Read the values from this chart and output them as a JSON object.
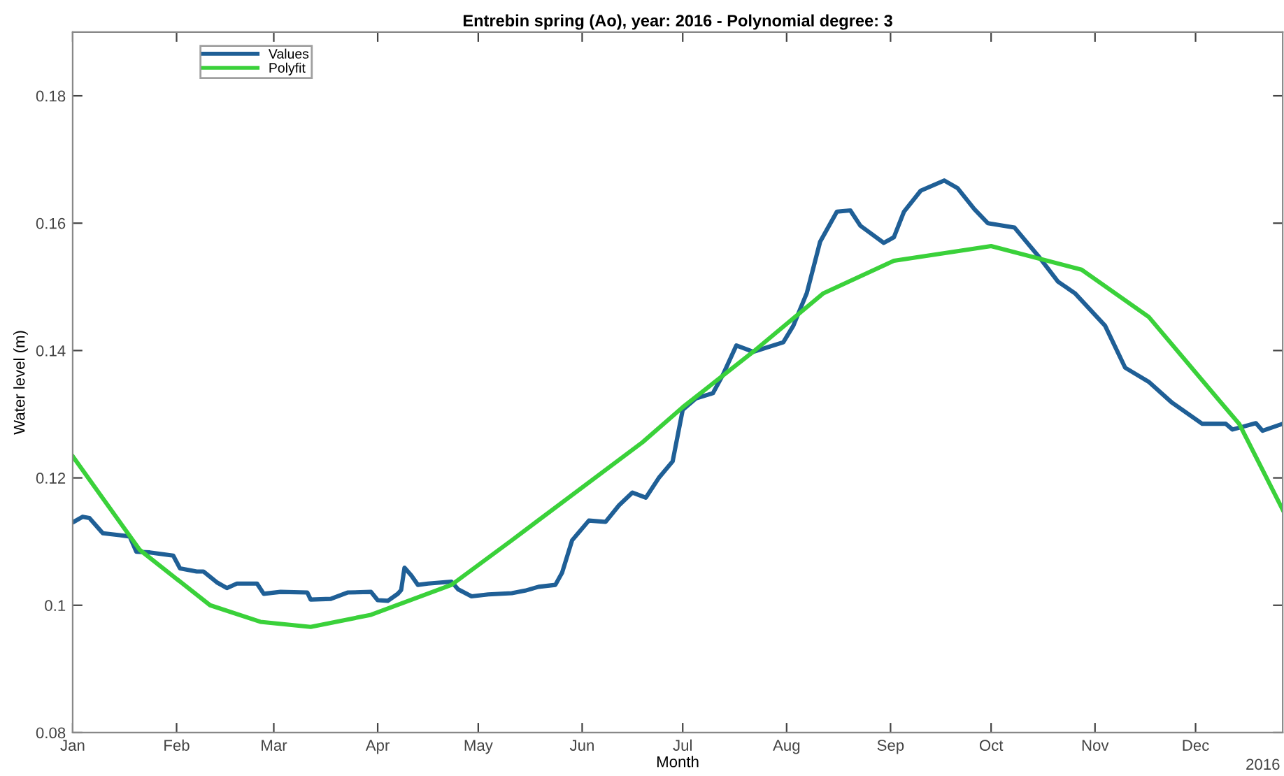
{
  "chart_data": {
    "type": "line",
    "title": "Entrebin spring (Ao), year: 2016 - Polynomial degree: 3",
    "xlabel": "Month",
    "ylabel": "Water level (m)",
    "annotations": [
      "2016"
    ],
    "xlim": [
      "2016-01-01",
      "2016-12-27"
    ],
    "xticks": [
      {
        "value": "2016-01-01",
        "label": "Jan"
      },
      {
        "value": "2016-02-01",
        "label": "Feb"
      },
      {
        "value": "2016-03-01",
        "label": "Mar"
      },
      {
        "value": "2016-04-01",
        "label": "Apr"
      },
      {
        "value": "2016-05-01",
        "label": "May"
      },
      {
        "value": "2016-06-01",
        "label": "Jun"
      },
      {
        "value": "2016-07-01",
        "label": "Jul"
      },
      {
        "value": "2016-08-01",
        "label": "Aug"
      },
      {
        "value": "2016-09-01",
        "label": "Sep"
      },
      {
        "value": "2016-10-01",
        "label": "Oct"
      },
      {
        "value": "2016-11-01",
        "label": "Nov"
      },
      {
        "value": "2016-12-01",
        "label": "Dec"
      }
    ],
    "ylim": [
      0.08,
      0.19
    ],
    "yticks": [
      0.08,
      0.1,
      0.12,
      0.14,
      0.16,
      0.18
    ],
    "grid": false,
    "legend": "top left",
    "series": [
      {
        "name": "Values",
        "color": "#1f5f96",
        "x": [
          "2016-01-01",
          "2016-01-04",
          "2016-01-06",
          "2016-01-10",
          "2016-01-15",
          "2016-01-18",
          "2016-01-20",
          "2016-01-24",
          "2016-01-31",
          "2016-02-02",
          "2016-02-07",
          "2016-02-09",
          "2016-02-13",
          "2016-02-16",
          "2016-02-19",
          "2016-02-25",
          "2016-02-27",
          "2016-03-03",
          "2016-03-11",
          "2016-03-12",
          "2016-03-18",
          "2016-03-23",
          "2016-03-30",
          "2016-04-01",
          "2016-04-04",
          "2016-04-07",
          "2016-04-08",
          "2016-04-09",
          "2016-04-11",
          "2016-04-13",
          "2016-04-16",
          "2016-04-23",
          "2016-04-25",
          "2016-04-29",
          "2016-05-04",
          "2016-05-11",
          "2016-05-15",
          "2016-05-19",
          "2016-05-24",
          "2016-05-26",
          "2016-05-29",
          "2016-06-03",
          "2016-06-08",
          "2016-06-12",
          "2016-06-16",
          "2016-06-20",
          "2016-06-24",
          "2016-06-28",
          "2016-07-01",
          "2016-07-05",
          "2016-07-10",
          "2016-07-13",
          "2016-07-17",
          "2016-07-22",
          "2016-07-31",
          "2016-08-03",
          "2016-08-07",
          "2016-08-11",
          "2016-08-16",
          "2016-08-20",
          "2016-08-23",
          "2016-08-30",
          "2016-09-02",
          "2016-09-05",
          "2016-09-10",
          "2016-09-17",
          "2016-09-21",
          "2016-09-26",
          "2016-09-30",
          "2016-10-08",
          "2016-10-15",
          "2016-10-21",
          "2016-10-26",
          "2016-11-04",
          "2016-11-10",
          "2016-11-17",
          "2016-11-24",
          "2016-12-03",
          "2016-12-10",
          "2016-12-12",
          "2016-12-19",
          "2016-12-21",
          "2016-12-27"
        ],
        "values": [
          0.113,
          0.1139,
          0.1137,
          0.1113,
          0.111,
          0.1108,
          0.1084,
          0.1083,
          0.1078,
          0.1058,
          0.1053,
          0.1053,
          0.1036,
          0.1027,
          0.1034,
          0.1034,
          0.1018,
          0.1021,
          0.102,
          0.1009,
          0.101,
          0.102,
          0.1021,
          0.1008,
          0.1007,
          0.1018,
          0.1024,
          0.1059,
          0.1047,
          0.1032,
          0.1034,
          0.1037,
          0.1025,
          0.1014,
          0.1017,
          0.1019,
          0.1023,
          0.1029,
          0.1032,
          0.1051,
          0.1102,
          0.1133,
          0.1131,
          0.1157,
          0.1177,
          0.1169,
          0.1201,
          0.1226,
          0.1307,
          0.1325,
          0.1333,
          0.1362,
          0.1408,
          0.1398,
          0.1413,
          0.1439,
          0.149,
          0.1571,
          0.1618,
          0.162,
          0.1596,
          0.1569,
          0.1578,
          0.1618,
          0.1651,
          0.1667,
          0.1655,
          0.1622,
          0.16,
          0.1593,
          0.1549,
          0.1508,
          0.149,
          0.1439,
          0.1373,
          0.1351,
          0.1318,
          0.1285,
          0.1285,
          0.1276,
          0.1286,
          0.1274,
          0.1285
        ]
      },
      {
        "name": "Polyfit",
        "color": "#3ad13a",
        "x": [
          "2016-01-01",
          "2016-01-21",
          "2016-02-11",
          "2016-02-26",
          "2016-03-12",
          "2016-03-30",
          "2016-04-23",
          "2016-05-11",
          "2016-06-19",
          "2016-07-01",
          "2016-07-22",
          "2016-08-12",
          "2016-09-02",
          "2016-10-01",
          "2016-10-28",
          "2016-11-17",
          "2016-12-08",
          "2016-12-14",
          "2016-12-27"
        ],
        "values": [
          0.1234,
          0.1087,
          0.1,
          0.0974,
          0.0966,
          0.0985,
          0.1032,
          0.1102,
          0.1256,
          0.1311,
          0.1398,
          0.149,
          0.1541,
          0.1564,
          0.1527,
          0.1453,
          0.1322,
          0.1285,
          0.115
        ]
      }
    ]
  }
}
